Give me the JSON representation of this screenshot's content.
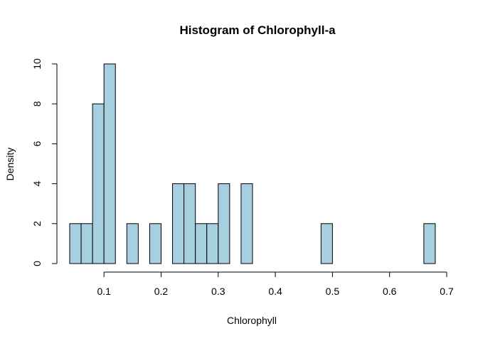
{
  "chart_data": {
    "type": "bar",
    "title": "Histogram of Chlorophyll-a",
    "xlabel": "Chlorophyll",
    "ylabel": "Density",
    "bin_width": 0.02,
    "bin_edges": [
      0.04,
      0.06,
      0.08,
      0.1,
      0.12,
      0.14,
      0.16,
      0.18,
      0.2,
      0.22,
      0.24,
      0.26,
      0.28,
      0.3,
      0.32,
      0.34,
      0.36,
      0.38,
      0.4,
      0.42,
      0.44,
      0.46,
      0.48,
      0.5,
      0.52,
      0.54,
      0.56,
      0.58,
      0.6,
      0.62,
      0.64,
      0.66,
      0.68
    ],
    "values": [
      2,
      2,
      8,
      10,
      0,
      2,
      0,
      2,
      0,
      4,
      4,
      2,
      2,
      4,
      0,
      4,
      0,
      0,
      0,
      0,
      0,
      0,
      2,
      0,
      0,
      0,
      0,
      0,
      0,
      0,
      0,
      2
    ],
    "xlim": [
      0.04,
      0.7
    ],
    "ylim": [
      0,
      10
    ],
    "xticks": [
      0.1,
      0.2,
      0.3,
      0.4,
      0.5,
      0.6,
      0.7
    ],
    "xtick_labels": [
      "0.1",
      "0.2",
      "0.3",
      "0.4",
      "0.5",
      "0.6",
      "0.7"
    ],
    "yticks": [
      0,
      2,
      4,
      6,
      8,
      10
    ],
    "ytick_labels": [
      "0",
      "2",
      "4",
      "6",
      "8",
      "10"
    ],
    "grid": false,
    "bar_color": "#a6cfe0",
    "edge_color": "#000000"
  }
}
